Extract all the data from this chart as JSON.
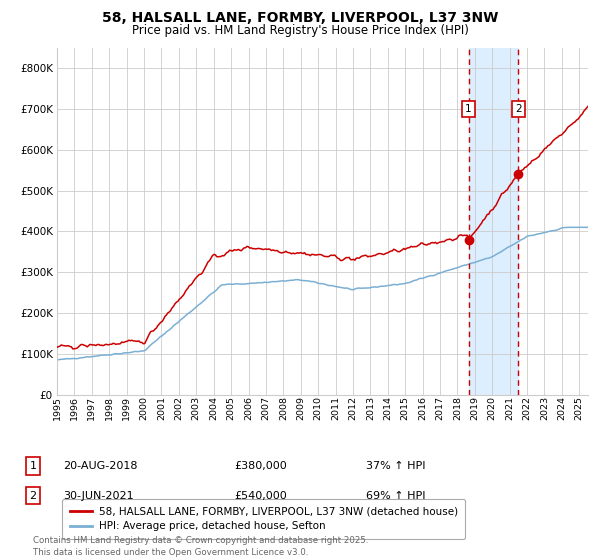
{
  "title": "58, HALSALL LANE, FORMBY, LIVERPOOL, L37 3NW",
  "subtitle": "Price paid vs. HM Land Registry's House Price Index (HPI)",
  "background_color": "#ffffff",
  "plot_bg_color": "#ffffff",
  "grid_color": "#cccccc",
  "red_line_color": "#cc0000",
  "blue_line_color": "#7bafd4",
  "highlight_bg_color": "#ddeeff",
  "dashed_line_color": "#cc0000",
  "sale1_x": 2018.64,
  "sale1_y": 380000,
  "sale2_x": 2021.49,
  "sale2_y": 540000,
  "legend_red": "58, HALSALL LANE, FORMBY, LIVERPOOL, L37 3NW (detached house)",
  "legend_blue": "HPI: Average price, detached house, Sefton",
  "dates": [
    "20-AUG-2018",
    "30-JUN-2021"
  ],
  "prices": [
    "£380,000",
    "£540,000"
  ],
  "pcts": [
    "37% ↑ HPI",
    "69% ↑ HPI"
  ],
  "footer": "Contains HM Land Registry data © Crown copyright and database right 2025.\nThis data is licensed under the Open Government Licence v3.0.",
  "xmin": 1995,
  "xmax": 2025.5,
  "ymin": 0,
  "ymax": 850000,
  "yticks": [
    0,
    100000,
    200000,
    300000,
    400000,
    500000,
    600000,
    700000,
    800000
  ]
}
